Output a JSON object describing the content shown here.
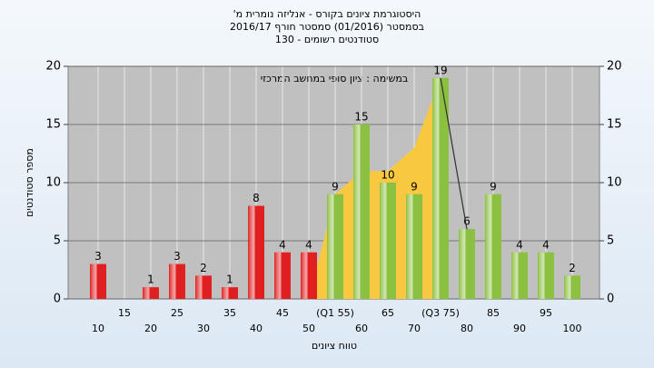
{
  "chart_data": {
    "type": "bar",
    "title": "היסטוגרמת ציונים בקורס - אנליזה נומרית מ'",
    "subtitle": "בסמסטר (01/2016) סמסטר חורף 2016/17",
    "subtitle2": "סטודנטים רשומים - 130",
    "annotation": "במשימה : ציון סופי במחשב המרכזי",
    "y_label": "מספר סטודנטים",
    "x_label": "טווח ציונים",
    "categories": [
      "10",
      "15",
      "20",
      "25",
      "30",
      "35",
      "40",
      "45",
      "50",
      "(Q1 55)",
      "60",
      "65",
      "70",
      "(Q3 75)",
      "80",
      "85",
      "90",
      "95",
      "100"
    ],
    "values": [
      3,
      0,
      1,
      3,
      2,
      1,
      8,
      4,
      4,
      9,
      15,
      10,
      9,
      19,
      6,
      9,
      4,
      4,
      2
    ],
    "colors": [
      "#e02020",
      "#e02020",
      "#e02020",
      "#e02020",
      "#e02020",
      "#e02020",
      "#e02020",
      "#e02020",
      "#e02020",
      "#8cc040",
      "#8cc040",
      "#8cc040",
      "#8cc040",
      "#8cc040",
      "#8cc040",
      "#8cc040",
      "#8cc040",
      "#8cc040",
      "#8cc040"
    ],
    "area": {
      "color": "#f8c840",
      "values": [
        null,
        null,
        null,
        null,
        null,
        null,
        null,
        null,
        0,
        9,
        11,
        11,
        13,
        19,
        null,
        null,
        null,
        null,
        null
      ]
    },
    "line": {
      "color": "#303030",
      "values": [
        null,
        null,
        null,
        null,
        null,
        null,
        null,
        null,
        null,
        null,
        null,
        null,
        null,
        19,
        6,
        null,
        null,
        null,
        null
      ]
    },
    "ylim": [
      0,
      20
    ],
    "yticks": [
      0,
      5,
      10,
      15,
      20
    ],
    "y2lim": [
      0,
      20
    ],
    "y2ticks": [
      0,
      5,
      10,
      15,
      20
    ],
    "grid": true
  }
}
